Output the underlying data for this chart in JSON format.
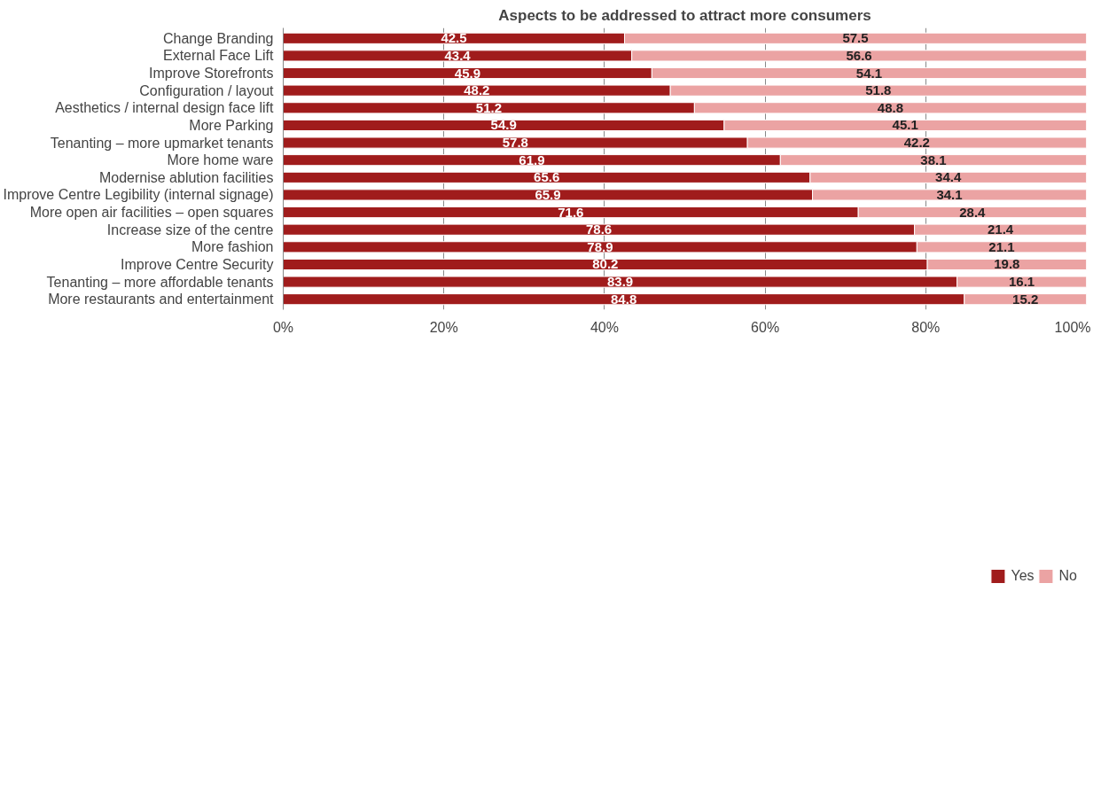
{
  "chart_data": {
    "type": "bar",
    "orientation": "horizontal",
    "stacked": true,
    "title": "Aspects to be addressed to attract more consumers",
    "categories": [
      "Change Branding",
      "External Face Lift",
      "Improve Storefronts",
      "Configuration / layout",
      "Aesthetics / internal design face lift",
      "More Parking",
      "Tenanting – more upmarket tenants",
      "More home ware",
      "Modernise ablution facilities",
      "Improve Centre Legibility (internal signage)",
      "More open air facilities – open squares",
      "Increase size of the centre",
      "More fashion",
      "Improve Centre Security",
      "Tenanting – more affordable tenants",
      "More restaurants and entertainment"
    ],
    "series": [
      {
        "name": "Yes",
        "color": "#a01c1c",
        "values": [
          42.5,
          43.4,
          45.9,
          48.2,
          51.2,
          54.9,
          57.8,
          61.9,
          65.6,
          65.9,
          71.6,
          78.6,
          78.9,
          80.2,
          83.9,
          84.8
        ]
      },
      {
        "name": "No",
        "color": "#eba3a3",
        "values": [
          57.5,
          56.6,
          54.1,
          51.8,
          48.8,
          45.1,
          42.2,
          38.1,
          34.4,
          34.1,
          28.4,
          21.4,
          21.1,
          19.8,
          16.1,
          15.2
        ]
      }
    ],
    "xlim": [
      0,
      100
    ],
    "xticks": [
      {
        "value": 0,
        "label": "0%"
      },
      {
        "value": 20,
        "label": "20%"
      },
      {
        "value": 40,
        "label": "40%"
      },
      {
        "value": 60,
        "label": "60%"
      },
      {
        "value": 80,
        "label": "80%"
      },
      {
        "value": 100,
        "label": "100%"
      }
    ],
    "grid": "x",
    "legend": "bottom",
    "data_labels": true
  }
}
